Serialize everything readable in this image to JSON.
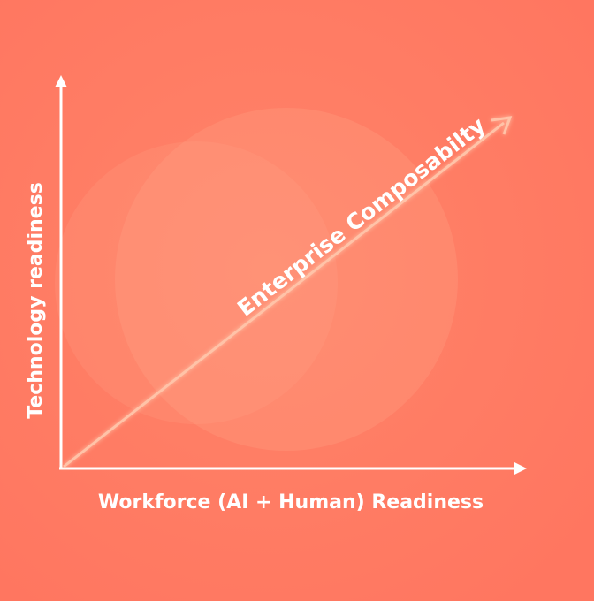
{
  "diagram": {
    "y_axis_label": "Technology readiness",
    "x_axis_label": "Workforce (AI + Human) Readiness",
    "diagonal_label": "Enterprise Composabilty",
    "colors": {
      "background": "#ff7b62",
      "circle_fill": "#ffa58a",
      "axis": "#ffffff",
      "diagonal_arrow": "#ffc3a8",
      "text": "#ffffff"
    }
  }
}
